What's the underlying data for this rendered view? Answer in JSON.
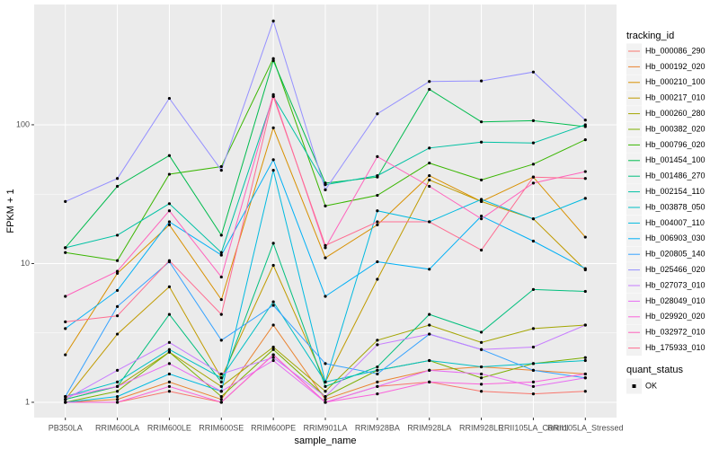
{
  "chart_data": {
    "type": "line",
    "log_y": true,
    "grid": true,
    "x_label": "sample_name",
    "y_label": "FPKM + 1",
    "categories": [
      "PB350LA",
      "RRIM600LA",
      "RRIM600LE",
      "RRIM600SE",
      "RRIM600PE",
      "RRIM901LA",
      "RRIM928BA",
      "RRIM928LA",
      "RRIM928LE",
      "RRII105LA_Control",
      "RRII105LA_Stressed"
    ],
    "ylim": [
      0.776,
      736
    ],
    "yticks": [
      1,
      10,
      100
    ],
    "legend_title": "tracking_id",
    "shape_legend_title": "quant_status",
    "shape_labels": [
      "OK"
    ],
    "point_color": "#000000",
    "series": [
      {
        "name": "Hb_000086_290",
        "color": "#F8766D",
        "values": [
          1.0,
          1.0,
          1.2,
          1.0,
          2.2,
          1.0,
          1.3,
          1.4,
          1.2,
          1.15,
          1.2
        ]
      },
      {
        "name": "Hb_000192_020",
        "color": "#EA8331",
        "values": [
          1.0,
          1.05,
          1.4,
          1.05,
          3.6,
          1.05,
          1.4,
          1.7,
          1.8,
          1.7,
          1.6
        ]
      },
      {
        "name": "Hb_000210_100",
        "color": "#D89000",
        "values": [
          2.2,
          8.5,
          19,
          5.5,
          95,
          11,
          19,
          43,
          28,
          42,
          15.5
        ]
      },
      {
        "name": "Hb_000217_010",
        "color": "#C09B00",
        "values": [
          1.05,
          3.1,
          6.8,
          1.5,
          9.7,
          1.4,
          7.7,
          40,
          28,
          21,
          9
        ]
      },
      {
        "name": "Hb_000260_280",
        "color": "#A3A500",
        "values": [
          1.05,
          1.3,
          2.3,
          1.3,
          2.5,
          1.2,
          2.8,
          3.6,
          2.7,
          3.4,
          3.6
        ]
      },
      {
        "name": "Hb_000382_020",
        "color": "#7CAE00",
        "values": [
          1.0,
          1.2,
          2.3,
          1.1,
          2.4,
          1.1,
          1.7,
          2.0,
          1.5,
          1.9,
          2.1
        ]
      },
      {
        "name": "Hb_000796_020",
        "color": "#39B600",
        "values": [
          12,
          10.5,
          44,
          50,
          300,
          26,
          31,
          53,
          40,
          52,
          78
        ]
      },
      {
        "name": "Hb_001454_100",
        "color": "#00BB4E",
        "values": [
          13,
          36,
          60,
          16,
          290,
          38,
          42,
          180,
          105,
          107,
          97
        ]
      },
      {
        "name": "Hb_001486_270",
        "color": "#00BF7D",
        "values": [
          1.05,
          1.3,
          4.3,
          1.4,
          14,
          1.3,
          1.8,
          4.3,
          3.2,
          6.5,
          6.3
        ]
      },
      {
        "name": "Hb_002154_110",
        "color": "#00C1A3",
        "values": [
          13,
          16,
          27,
          12,
          160,
          37,
          43,
          68,
          75,
          74,
          100
        ]
      },
      {
        "name": "Hb_003878_050",
        "color": "#00BFC4",
        "values": [
          1.1,
          1.4,
          2.4,
          1.5,
          5.3,
          1.4,
          1.7,
          2.0,
          1.8,
          1.9,
          2.0
        ]
      },
      {
        "name": "Hb_004007_110",
        "color": "#00BAE0",
        "values": [
          1.0,
          1.1,
          1.6,
          1.2,
          47,
          1.4,
          24,
          20,
          29,
          21,
          29.5
        ]
      },
      {
        "name": "Hb_006903_030",
        "color": "#00B0F6",
        "values": [
          3.4,
          6.4,
          20,
          11.5,
          56,
          5.8,
          10.3,
          9.1,
          22,
          14.5,
          9.2
        ]
      },
      {
        "name": "Hb_020805_140",
        "color": "#35A2FF",
        "values": [
          1.1,
          4.9,
          10.3,
          2.8,
          5.0,
          1.9,
          1.6,
          3.1,
          2.4,
          1.7,
          1.5
        ]
      },
      {
        "name": "Hb_025466_020",
        "color": "#9590FF",
        "values": [
          28,
          41,
          155,
          47,
          560,
          34,
          120,
          205,
          207,
          240,
          108
        ]
      },
      {
        "name": "Hb_027073_010",
        "color": "#C77CFF",
        "values": [
          1.05,
          1.7,
          2.7,
          1.6,
          2.1,
          1.1,
          2.6,
          3.1,
          2.4,
          2.5,
          3.6
        ]
      },
      {
        "name": "Hb_028049_010",
        "color": "#E76BF3",
        "values": [
          1.1,
          1.3,
          1.9,
          1.2,
          2.0,
          1.0,
          1.3,
          1.7,
          1.6,
          1.3,
          1.5
        ]
      },
      {
        "name": "Hb_029920_020",
        "color": "#FA62DB",
        "values": [
          1.0,
          1.0,
          1.3,
          1.0,
          2.2,
          1.0,
          1.15,
          1.4,
          1.35,
          1.4,
          1.6
        ]
      },
      {
        "name": "Hb_032972_010",
        "color": "#FF62BC",
        "values": [
          5.8,
          8.8,
          24,
          8,
          165,
          13,
          59,
          36,
          21,
          38,
          46
        ]
      },
      {
        "name": "Hb_175933_010",
        "color": "#FF6C91",
        "values": [
          3.8,
          4.2,
          10.5,
          4.3,
          160,
          13.5,
          20,
          20,
          12.5,
          42,
          41
        ]
      }
    ]
  }
}
